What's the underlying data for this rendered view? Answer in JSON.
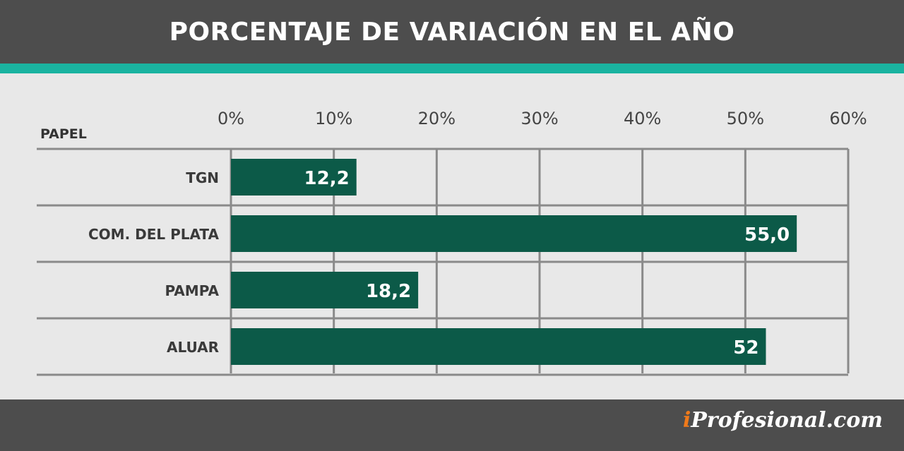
{
  "header": {
    "title": "PORCENTAJE DE VARIACIÓN EN EL AÑO"
  },
  "footer": {
    "brand_i": "i",
    "brand_rest": "Profesional.com"
  },
  "colors": {
    "bar": "#0c5a48",
    "header": "#4d4d4d",
    "accent": "#1ab3a0",
    "grid": "#8a8a8a",
    "background": "#e8e8e8"
  },
  "chart_data": {
    "type": "bar",
    "orientation": "horizontal",
    "title": "PORCENTAJE DE VARIACIÓN EN EL AÑO",
    "category_header": "PAPEL",
    "categories": [
      "TGN",
      "COM. DEL PLATA",
      "PAMPA",
      "ALUAR"
    ],
    "values": [
      12.2,
      55.0,
      18.2,
      52
    ],
    "value_labels": [
      "12,2",
      "55,0",
      "18,2",
      "52"
    ],
    "xlim": [
      0,
      60
    ],
    "x_ticks": [
      0,
      10,
      20,
      30,
      40,
      50,
      60
    ],
    "x_tick_labels": [
      "0%",
      "10%",
      "20%",
      "30%",
      "40%",
      "50%",
      "60%"
    ],
    "grid": true,
    "axis_position": "top"
  }
}
